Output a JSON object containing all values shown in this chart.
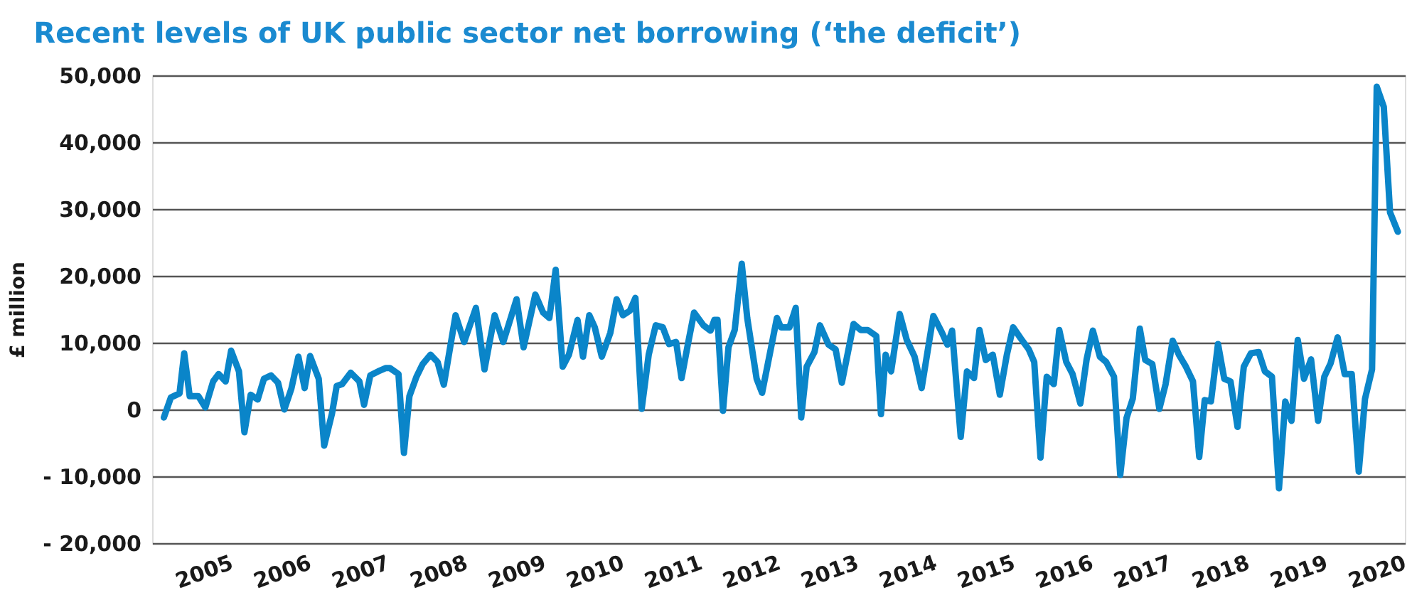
{
  "chart_data": {
    "type": "line",
    "title": "Recent levels of UK public sector net borrowing (‘the deficit’)",
    "ylabel": "£ million",
    "x": [
      2004.18,
      2004.27,
      2004.38,
      2004.44,
      2004.51,
      2004.62,
      2004.71,
      2004.81,
      2004.88,
      2004.97,
      2005.04,
      2005.14,
      2005.21,
      2005.29,
      2005.38,
      2005.46,
      2005.55,
      2005.64,
      2005.72,
      2005.81,
      2005.9,
      2005.98,
      2006.05,
      2006.16,
      2006.23,
      2006.33,
      2006.39,
      2006.46,
      2006.57,
      2006.68,
      2006.74,
      2006.82,
      2006.92,
      2007.02,
      2007.07,
      2007.18,
      2007.25,
      2007.32,
      2007.41,
      2007.49,
      2007.59,
      2007.68,
      2007.76,
      2007.91,
      2008.02,
      2008.17,
      2008.28,
      2008.41,
      2008.52,
      2008.69,
      2008.78,
      2008.93,
      2009.03,
      2009.11,
      2009.19,
      2009.28,
      2009.36,
      2009.47,
      2009.54,
      2009.62,
      2009.69,
      2009.78,
      2009.89,
      2009.97,
      2010.05,
      2010.14,
      2010.21,
      2010.29,
      2010.38,
      2010.47,
      2010.56,
      2010.64,
      2010.73,
      2010.8,
      2010.88,
      2010.96,
      2011.08,
      2011.17,
      2011.22,
      2011.26,
      2011.33,
      2011.4,
      2011.48,
      2011.57,
      2011.64,
      2011.76,
      2011.83,
      2012.02,
      2012.07,
      2012.18,
      2012.26,
      2012.33,
      2012.4,
      2012.5,
      2012.57,
      2012.68,
      2012.77,
      2012.85,
      2013.0,
      2013.09,
      2013.18,
      2013.29,
      2013.35,
      2013.41,
      2013.48,
      2013.59,
      2013.68,
      2013.78,
      2013.87,
      2014.02,
      2014.13,
      2014.2,
      2014.26,
      2014.37,
      2014.45,
      2014.54,
      2014.61,
      2014.69,
      2014.78,
      2014.87,
      2014.96,
      2015.04,
      2015.14,
      2015.24,
      2015.31,
      2015.39,
      2015.47,
      2015.56,
      2015.63,
      2015.72,
      2015.8,
      2015.9,
      2015.98,
      2016.06,
      2016.15,
      2016.23,
      2016.33,
      2016.41,
      2016.49,
      2016.57,
      2016.66,
      2016.73,
      2016.82,
      2016.91,
      2016.99,
      2017.08,
      2017.16,
      2017.25,
      2017.34,
      2017.42,
      2017.49,
      2017.57,
      2017.66,
      2017.74,
      2017.82,
      2017.91,
      2017.99,
      2018.08,
      2018.18,
      2018.26,
      2018.35,
      2018.44,
      2018.52,
      2018.6,
      2018.68,
      2018.76,
      2018.85,
      2018.94,
      2019.02,
      2019.1,
      2019.19,
      2019.28,
      2019.37,
      2019.46,
      2019.54,
      2019.63,
      2019.69,
      2019.78,
      2019.86,
      2019.96
    ],
    "series": [
      {
        "color": "#0a85c9",
        "values": [
          -1200,
          1800,
          2400,
          8400,
          2000,
          2000,
          300,
          4200,
          5300,
          4200,
          8800,
          5700,
          -3400,
          2200,
          1500,
          4600,
          5100,
          4000,
          0,
          3100,
          7900,
          3200,
          8000,
          4600,
          -5400,
          -600,
          3500,
          3800,
          5500,
          4200,
          700,
          5100,
          5700,
          6200,
          6200,
          5300,
          -6500,
          2000,
          4900,
          6800,
          8200,
          7100,
          3700,
          14100,
          10100,
          15200,
          6000,
          14100,
          10100,
          16500,
          9300,
          17200,
          14500,
          13700,
          20900,
          6400,
          8200,
          13400,
          7900,
          14100,
          12300,
          7900,
          11500,
          16500,
          14100,
          14800,
          16700,
          100,
          8200,
          12600,
          12300,
          9800,
          10100,
          4700,
          9700,
          14500,
          12600,
          11800,
          13400,
          13400,
          -200,
          9300,
          11900,
          21800,
          13700,
          4600,
          2500,
          13700,
          12300,
          12300,
          15200,
          -1200,
          6400,
          8600,
          12600,
          9700,
          9000,
          4000,
          12800,
          11900,
          11900,
          11000,
          -700,
          8200,
          5700,
          14300,
          10400,
          7900,
          3200,
          14000,
          11500,
          9700,
          11800,
          -4100,
          5700,
          4700,
          11900,
          7400,
          8200,
          2200,
          8200,
          12300,
          10600,
          9000,
          7100,
          -7200,
          4900,
          3800,
          11900,
          7100,
          5300,
          900,
          7500,
          11800,
          7900,
          7100,
          4900,
          -9800,
          -1300,
          1600,
          12100,
          7400,
          6800,
          100,
          3800,
          10300,
          8200,
          6400,
          4200,
          -7100,
          1400,
          1200,
          9800,
          4600,
          4200,
          -2600,
          6400,
          8400,
          8600,
          5700,
          4900,
          -11800,
          1200,
          -1700,
          10400,
          4600,
          7500,
          -1700,
          4900,
          6900,
          10800,
          5300,
          5300,
          -9300,
          1600,
          6000,
          48300,
          45300,
          29500,
          26600
        ]
      }
    ],
    "xlim": [
      2004.03,
      2020.05
    ],
    "xticks": [
      {
        "value": 2005,
        "label": "2005"
      },
      {
        "value": 2006,
        "label": "2006"
      },
      {
        "value": 2007,
        "label": "2007"
      },
      {
        "value": 2008,
        "label": "2008"
      },
      {
        "value": 2009,
        "label": "2009"
      },
      {
        "value": 2010,
        "label": "2010"
      },
      {
        "value": 2011,
        "label": "2011"
      },
      {
        "value": 2012,
        "label": "2012"
      },
      {
        "value": 2013,
        "label": "2013"
      },
      {
        "value": 2014,
        "label": "2014"
      },
      {
        "value": 2015,
        "label": "2015"
      },
      {
        "value": 2016,
        "label": "2016"
      },
      {
        "value": 2017,
        "label": "2017"
      },
      {
        "value": 2018,
        "label": "2018"
      },
      {
        "value": 2019,
        "label": "2019"
      },
      {
        "value": 2020,
        "label": "2020"
      }
    ],
    "ylim": [
      -20000,
      50000
    ],
    "yticks": [
      {
        "value": -20000,
        "label": "- 20,000"
      },
      {
        "value": -10000,
        "label": "- 10,000"
      },
      {
        "value": 0,
        "label": "0"
      },
      {
        "value": 10000,
        "label": "10,000"
      },
      {
        "value": 20000,
        "label": "20,000"
      },
      {
        "value": 30000,
        "label": "30,000"
      },
      {
        "value": 40000,
        "label": "40,000"
      },
      {
        "value": 50000,
        "label": "50,000"
      }
    ],
    "grid": "y"
  }
}
